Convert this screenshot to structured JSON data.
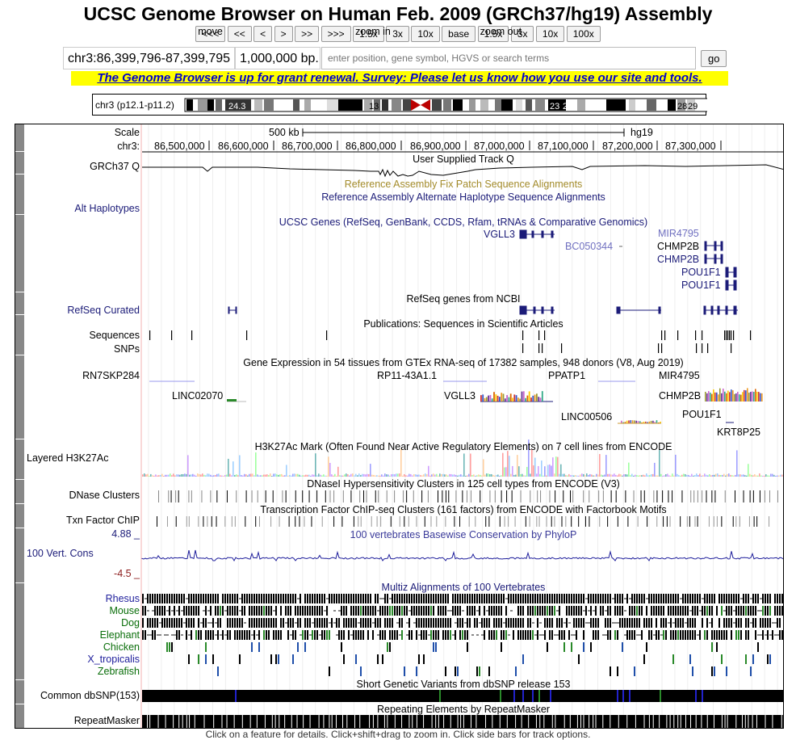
{
  "title": "UCSC Genome Browser on Human Feb. 2009 (GRCh37/hg19) Assembly",
  "nav": {
    "move_label": "move",
    "move_buttons": [
      "<<<",
      "<<",
      "<",
      ">",
      ">>",
      ">>>"
    ],
    "zoom_in_label": "zoom in",
    "zoom_in_buttons": [
      "1.5x",
      "3x",
      "10x",
      "base"
    ],
    "zoom_out_label": "zoom out",
    "zoom_out_buttons": [
      "1.5x",
      "3x",
      "10x",
      "100x"
    ]
  },
  "position": {
    "value": "chr3:86,399,796-87,399,795",
    "size": "1,000,000 bp.",
    "search_placeholder": "enter position, gene symbol, HGVS or search terms",
    "go_label": "go"
  },
  "announcement": "The Genome Browser is up for grant renewal.   Survey: Please let us know how you use our site and tools.",
  "ideogram": {
    "label": "chr3 (p12.1-p11.2)",
    "band_labels": [
      "24.3",
      "13",
      "23",
      "24",
      "28",
      "29"
    ]
  },
  "scale": {
    "label": "Scale",
    "size_label": "500 kb",
    "assembly": "hg19",
    "chrom_label": "chr3:",
    "ticks": [
      "86,500,000",
      "86,600,000",
      "86,700,000",
      "86,800,000",
      "86,900,000",
      "87,000,000",
      "87,100,000",
      "87,200,000",
      "87,300,000"
    ]
  },
  "tracks": {
    "grch37_label": "GRCh37 Q",
    "user_track_title": "User Supplied Track Q",
    "fix_patch_title": "Reference Assembly Fix Patch Sequence Alignments",
    "alt_hap_title": "Reference Assembly Alternate Haplotype Sequence Alignments",
    "alt_hap_label": "Alt Haplotypes",
    "ucsc_genes_title": "UCSC Genes (RefSeq, GenBank, CCDS, Rfam, tRNAs & Comparative Genomics)",
    "ucsc_gene_names": [
      "VGLL3",
      "MIR4795",
      "BC050344",
      "CHMP2B",
      "CHMP2B",
      "POU1F1",
      "POU1F1"
    ],
    "refseq_title": "RefSeq genes from NCBI",
    "refseq_label": "RefSeq Curated",
    "pubs_title": "Publications: Sequences in Scientific Articles",
    "sequences_label": "Sequences",
    "snps_label": "SNPs",
    "gtex_title": "Gene Expression in 54 tissues from GTEx RNA-seq of 17382 samples, 948 donors (V8, Aug 2019)",
    "gtex_genes": [
      "RN7SKP284",
      "RP11-43A1.1",
      "PPATP1",
      "MIR4795",
      "LINC02070",
      "VGLL3",
      "CHMP2B",
      "LINC00506",
      "POU1F1",
      "KRT8P25"
    ],
    "h3k27ac_title": "H3K27Ac Mark (Often Found Near Active Regulatory Elements) on 7 cell lines from ENCODE",
    "h3k27ac_label": "Layered H3K27Ac",
    "dnase_title": "DNaseI Hypersensitivity Clusters in 125 cell types from ENCODE (V3)",
    "dnase_label": "DNase Clusters",
    "txn_title": "Transcription Factor ChIP-seq Clusters (161 factors) from ENCODE with Factorbook Motifs",
    "txn_label": "Txn Factor ChIP",
    "cons_max": "4.88 _",
    "cons_title": "100 vertebrates Basewise Conservation by PhyloP",
    "cons_label": "100 Vert. Cons",
    "cons_min": "-4.5 _",
    "multiz_title": "Multiz Alignments of 100 Vertebrates",
    "species": [
      "Rhesus",
      "Mouse",
      "Dog",
      "Elephant",
      "Chicken",
      "X_tropicalis",
      "Zebrafish"
    ],
    "snp_title": "Short Genetic Variants from dbSNP release 153",
    "snp_label": "Common dbSNP(153)",
    "rmsk_title": "Repeating Elements by RepeatMasker",
    "rmsk_label": "RepeatMasker"
  },
  "footer": "Click on a feature for details. Click+shift+drag to zoom in. Click side bars for track options.",
  "colors": {
    "gene_navy": "#1b1b78",
    "announce_bg": "#ffff00",
    "announce_text": "#0000cc",
    "species_green": "#0a6e0a",
    "species_blue": "#1f1f9c",
    "fix_patch_gold": "#a38b2a"
  }
}
